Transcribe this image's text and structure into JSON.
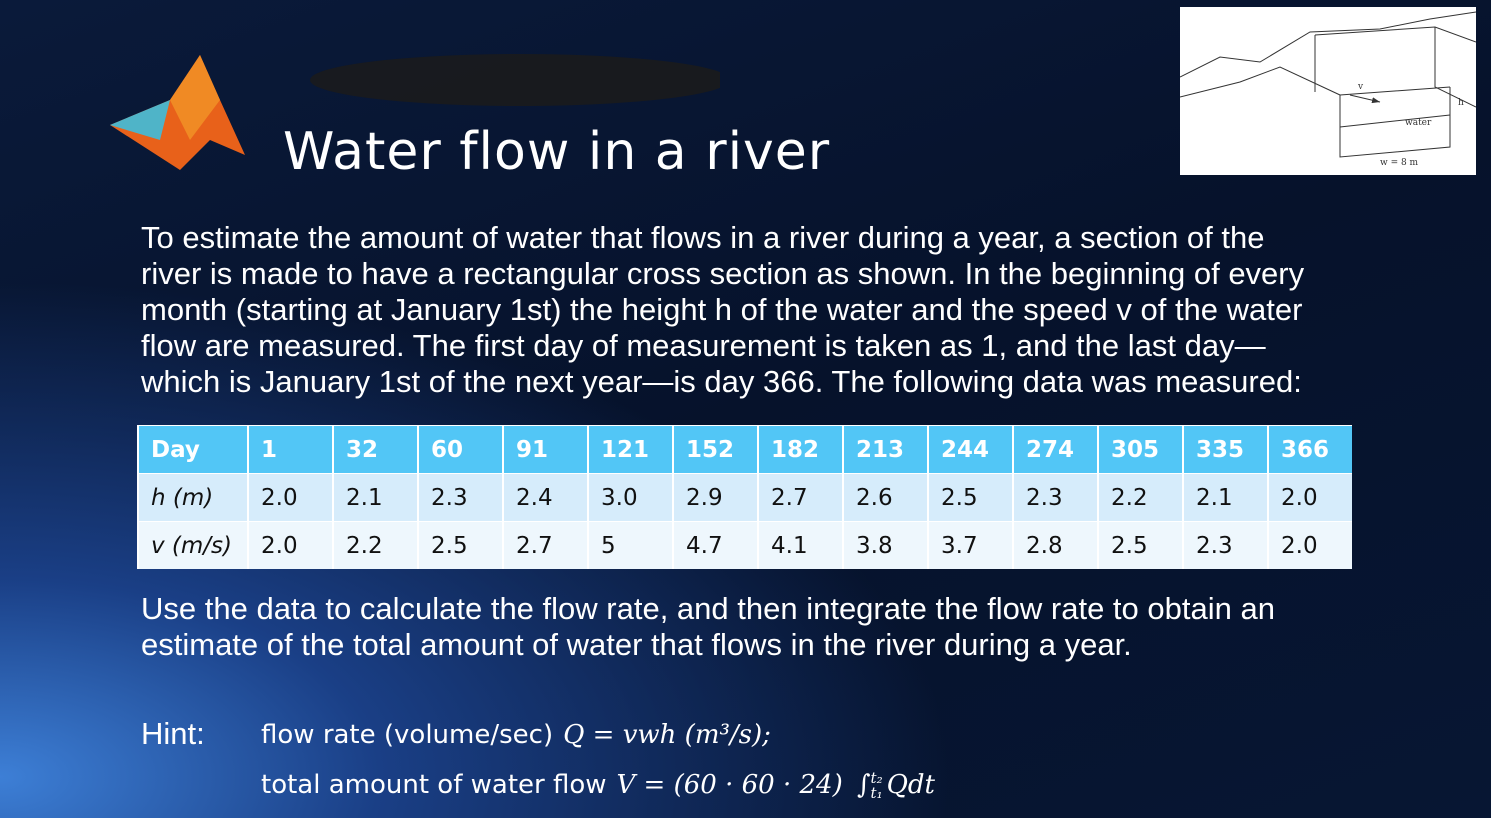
{
  "slide": {
    "title": "Water flow in a river",
    "figure": {
      "velocity": "v",
      "medium": "water",
      "width": "w = 8 m",
      "height": "h"
    },
    "intro": [
      "To estimate the amount of water that flows in a river during a year, a section of the",
      "river is made to have a rectangular cross section as shown. In the beginning of every",
      "month (starting at January 1st) the height h of the water and the speed v of the water",
      "flow are measured. The first day of measurement is taken as 1, and the last day—",
      "which is January 1st of the next year—is day 366. The following data was measured:"
    ],
    "table": {
      "header": [
        "Day",
        "1",
        "32",
        "60",
        "91",
        "121",
        "152",
        "182",
        "213",
        "244",
        "274",
        "305",
        "335",
        "366"
      ],
      "rows": [
        [
          "h (m)",
          "2.0",
          "2.1",
          "2.3",
          "2.4",
          "3.0",
          "2.9",
          "2.7",
          "2.6",
          "2.5",
          "2.3",
          "2.2",
          "2.1",
          "2.0"
        ],
        [
          "v (m/s)",
          "2.0",
          "2.2",
          "2.5",
          "2.7",
          "5",
          "4.7",
          "4.1",
          "3.8",
          "3.7",
          "2.8",
          "2.5",
          "2.3",
          "2.0"
        ]
      ]
    },
    "task": [
      "Use the data to calculate the flow rate, and then integrate the flow rate to obtain an",
      "estimate of the total amount of water that flows in the river during a year."
    ],
    "hint": {
      "label": "Hint:",
      "line1": {
        "text": "flow rate (volume/sec)",
        "formula": "Q = vwh (m³/s);"
      },
      "line2": {
        "text": "total amount of water flow",
        "formula": "V = (60 · 60 · 24)",
        "integral": "∫",
        "upper": "t₂",
        "lower": "t₁",
        "integrand": "Qdt"
      }
    }
  }
}
